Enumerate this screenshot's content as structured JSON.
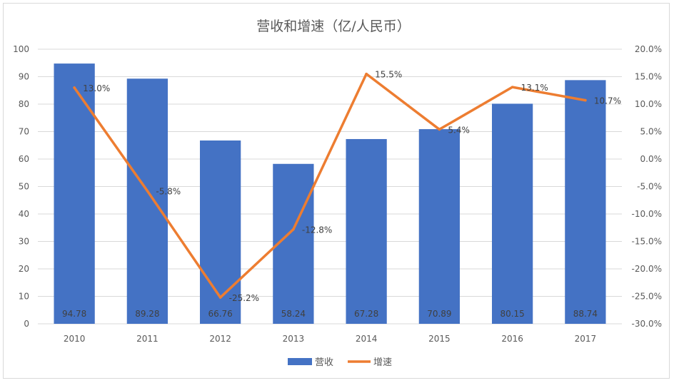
{
  "chart_data": {
    "type": "bar",
    "title": "营收和增速（亿/人民币）",
    "categories": [
      "2010",
      "2011",
      "2012",
      "2013",
      "2014",
      "2015",
      "2016",
      "2017"
    ],
    "series": [
      {
        "name": "营收",
        "type": "bar",
        "axis": "left",
        "color": "#4472c4",
        "values": [
          94.78,
          89.28,
          66.76,
          58.24,
          67.28,
          70.89,
          80.15,
          88.74
        ],
        "labels": [
          "94.78",
          "89.28",
          "66.76",
          "58.24",
          "67.28",
          "70.89",
          "80.15",
          "88.74"
        ]
      },
      {
        "name": "增速",
        "type": "line",
        "axis": "right",
        "color": "#ed7d31",
        "values": [
          13.0,
          -5.8,
          -25.2,
          -12.8,
          15.5,
          5.4,
          13.1,
          10.7
        ],
        "labels": [
          "13.0%",
          "-5.8%",
          "-25.2%",
          "-12.8%",
          "15.5%",
          "5.4%",
          "13.1%",
          "10.7%"
        ]
      }
    ],
    "y_left": {
      "ylim": [
        0,
        100
      ],
      "ticks": [
        "0",
        "10",
        "20",
        "30",
        "40",
        "50",
        "60",
        "70",
        "80",
        "90",
        "100"
      ]
    },
    "y_right": {
      "ylim": [
        -30,
        20
      ],
      "ticks": [
        "-30.0%",
        "-25.0%",
        "-20.0%",
        "-15.0%",
        "-10.0%",
        "-5.0%",
        "0.0%",
        "5.0%",
        "10.0%",
        "15.0%",
        "20.0%"
      ]
    },
    "grid": true,
    "legend": "bottom"
  }
}
